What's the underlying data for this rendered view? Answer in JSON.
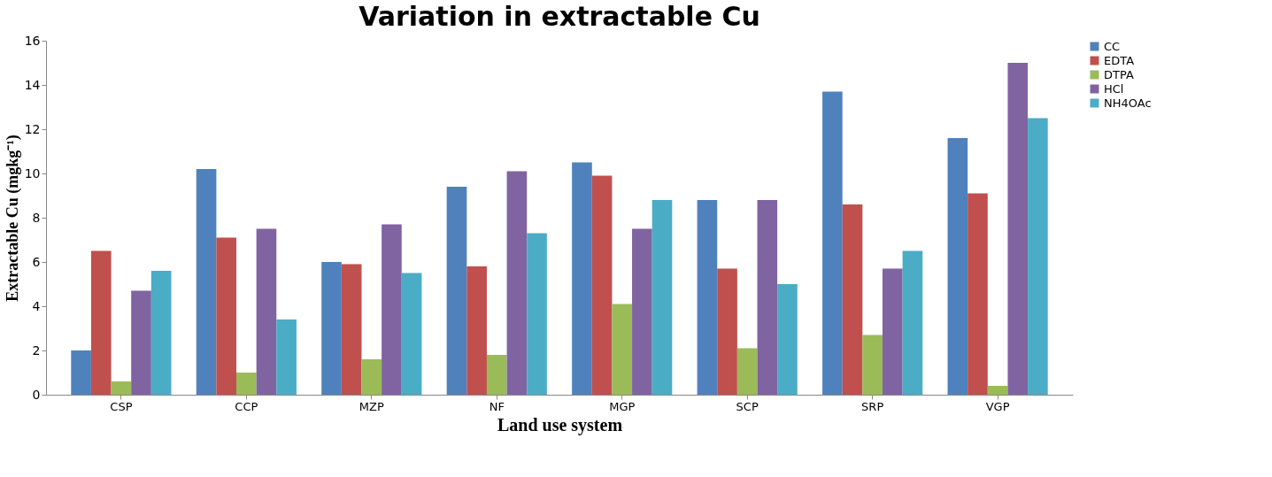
{
  "chart_data": {
    "type": "bar",
    "title": "Variation in extractable Cu",
    "xlabel": "Land use system",
    "ylabel": "Extractable Cu (mgkg⁻¹)",
    "categories": [
      "CSP",
      "CCP",
      "MZP",
      "NF",
      "MGP",
      "SCP",
      "SRP",
      "VGP"
    ],
    "series": [
      {
        "name": "CC",
        "color": "#4f81bd",
        "values": [
          2.0,
          10.2,
          6.0,
          9.4,
          10.5,
          8.8,
          13.7,
          11.6
        ]
      },
      {
        "name": "EDTA",
        "color": "#c0504d",
        "values": [
          6.5,
          7.1,
          5.9,
          5.8,
          9.9,
          5.7,
          8.6,
          9.1
        ]
      },
      {
        "name": "DTPA",
        "color": "#9bbb59",
        "values": [
          0.6,
          1.0,
          1.6,
          1.8,
          4.1,
          2.1,
          2.7,
          0.4
        ]
      },
      {
        "name": "HCl",
        "color": "#8064a2",
        "values": [
          4.7,
          7.5,
          7.7,
          10.1,
          7.5,
          8.8,
          5.7,
          15.0
        ]
      },
      {
        "name": "NH4OAc",
        "color": "#4bacc6",
        "values": [
          5.6,
          3.4,
          5.5,
          7.3,
          8.8,
          5.0,
          6.5,
          12.5
        ]
      }
    ],
    "ylim": [
      0,
      16
    ],
    "yticks": [
      0,
      2,
      4,
      6,
      8,
      10,
      12,
      14,
      16
    ],
    "grid": false,
    "legend": "right"
  }
}
